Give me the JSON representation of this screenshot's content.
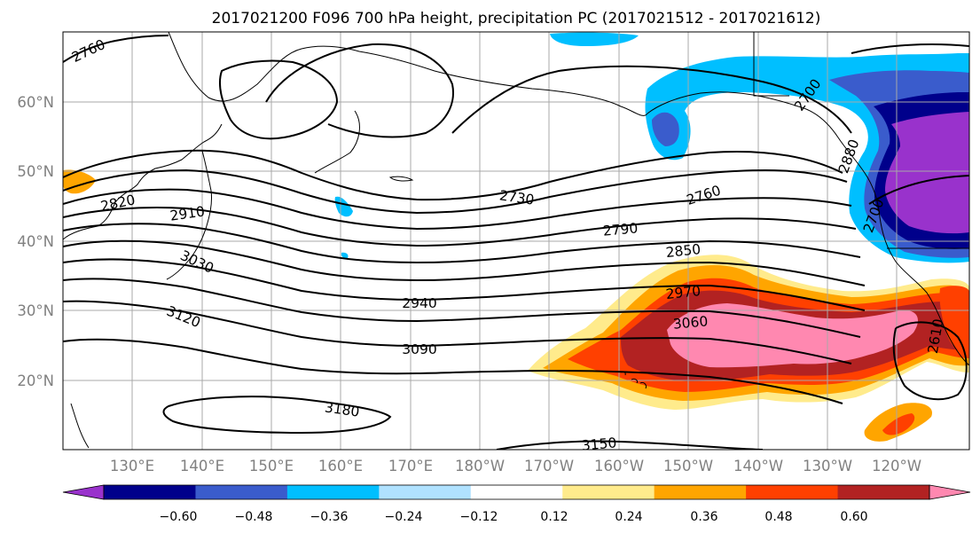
{
  "title": "2017021200 F096 700 hPa height, precipitation PC (2017021512 - 2017021612)",
  "lat_ticks": [
    "60°N",
    "50°N",
    "40°N",
    "30°N",
    "20°N"
  ],
  "lon_ticks": [
    "130°E",
    "140°E",
    "150°E",
    "160°E",
    "170°E",
    "180°W",
    "170°W",
    "160°W",
    "150°W",
    "140°W",
    "130°W",
    "120°W"
  ],
  "colorbar": {
    "tick_labels": [
      "−0.60",
      "−0.48",
      "−0.36",
      "−0.24",
      "−0.12",
      "0.12",
      "0.24",
      "0.36",
      "0.48",
      "0.60"
    ],
    "colors": [
      "#9932cc",
      "#00008b",
      "#3a5ccc",
      "#00bfff",
      "#b0e2ff",
      "#ffffff",
      "#ffeb8c",
      "#ffa500",
      "#ff4000",
      "#b22222",
      "#ff88b0"
    ]
  },
  "contour_labels": [
    "2760",
    "2820",
    "2910",
    "3030",
    "3120",
    "2730",
    "2760",
    "2790",
    "2850",
    "2940",
    "2970",
    "3060",
    "3090",
    "3180",
    "3150",
    "2700",
    "2880",
    "2700",
    "2610"
  ]
}
